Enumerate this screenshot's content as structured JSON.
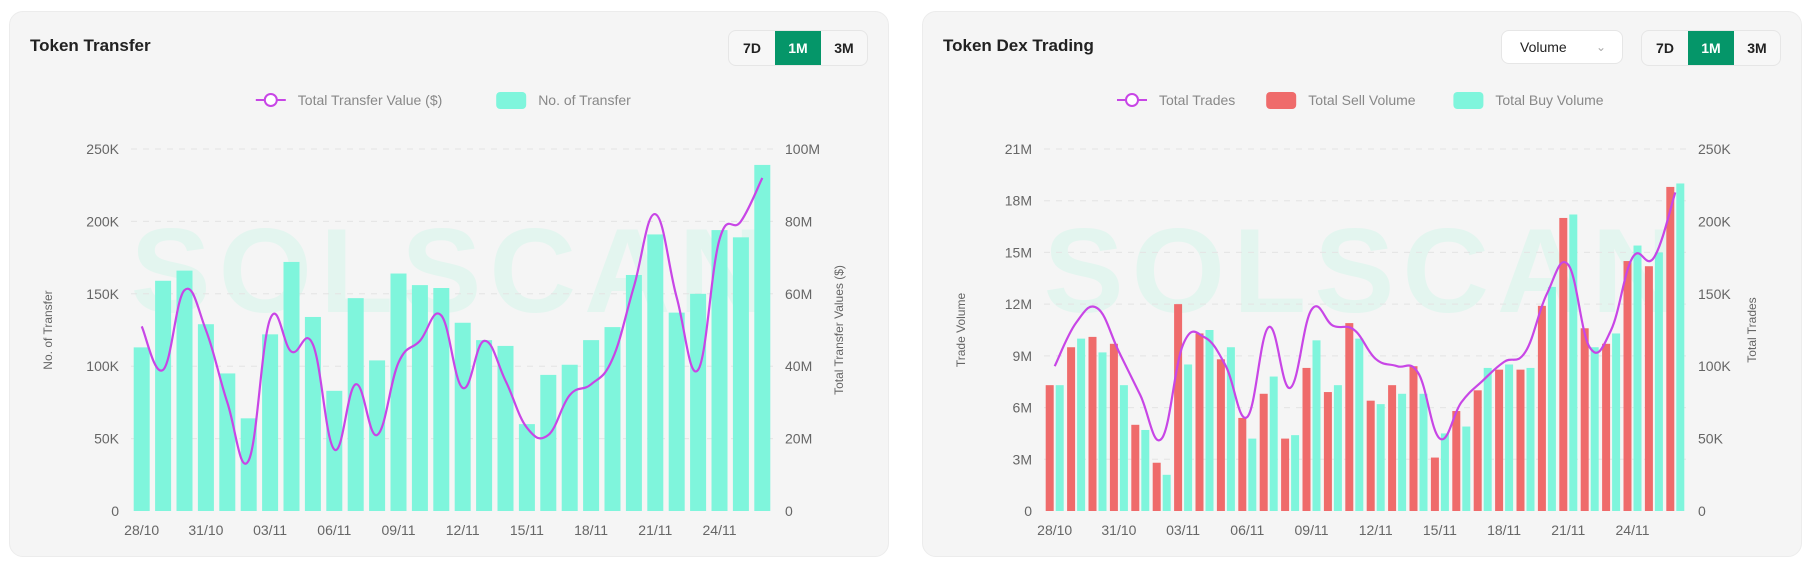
{
  "charts_ui": [
    {
      "title": "Token Transfer",
      "buttons": [
        "7D",
        "1M",
        "3M"
      ],
      "active": "1M"
    },
    {
      "title": "Token Dex Trading",
      "dropdown": "Volume",
      "buttons": [
        "7D",
        "1M",
        "3M"
      ],
      "active": "1M"
    }
  ],
  "watermark": "SOLSCAN",
  "colors": {
    "line": "#c846e6",
    "buy": "#7ff5dc",
    "sell": "#ef6b6b",
    "accent": "#059669"
  },
  "chart_data": [
    {
      "type": "bar+line",
      "legend": [
        "Total Transfer Value ($)",
        "No. of Transfer"
      ],
      "legend_position": "top",
      "ylabel": "No. of Transfer",
      "y2label": "Total Transfer Values ($)",
      "yticks": [
        "0",
        "50K",
        "100K",
        "150K",
        "200K",
        "250K"
      ],
      "ylim": [
        0,
        250000
      ],
      "y2ticks": [
        "0",
        "20M",
        "40M",
        "60M",
        "80M",
        "100M"
      ],
      "y2lim": [
        0,
        100000000
      ],
      "xticks": [
        "28/10",
        "31/10",
        "03/11",
        "06/11",
        "09/11",
        "12/11",
        "15/11",
        "18/11",
        "21/11",
        "24/11"
      ],
      "categories": [
        "28/10",
        "29/10",
        "30/10",
        "31/10",
        "01/11",
        "02/11",
        "03/11",
        "04/11",
        "05/11",
        "06/11",
        "07/11",
        "08/11",
        "09/11",
        "10/11",
        "11/11",
        "12/11",
        "13/11",
        "14/11",
        "15/11",
        "16/11",
        "17/11",
        "18/11",
        "19/11",
        "20/11",
        "21/11",
        "22/11",
        "23/11",
        "24/11",
        "25/11",
        "26/11"
      ],
      "series": [
        {
          "name": "No. of Transfer",
          "type": "bar",
          "axis": "left",
          "values": [
            113000,
            159000,
            166000,
            129000,
            95000,
            64000,
            122000,
            172000,
            134000,
            83000,
            147000,
            104000,
            164000,
            156000,
            154000,
            130000,
            118000,
            114000,
            60000,
            94000,
            101000,
            118000,
            127000,
            163000,
            191000,
            137000,
            150000,
            194000,
            189000,
            239000
          ]
        },
        {
          "name": "Total Transfer Value ($)",
          "type": "line",
          "axis": "right",
          "values": [
            51000000,
            39000000,
            61000000,
            50000000,
            30000000,
            14000000,
            53000000,
            44000000,
            46000000,
            17000000,
            35000000,
            21000000,
            41000000,
            47000000,
            54000000,
            34000000,
            47000000,
            36000000,
            23000000,
            21000000,
            32000000,
            35000000,
            42000000,
            62000000,
            82000000,
            59000000,
            39000000,
            75000000,
            80000000,
            92000000
          ]
        }
      ],
      "grid": true
    },
    {
      "type": "bar+line",
      "legend": [
        "Total Trades",
        "Total Sell Volume",
        "Total Buy Volume"
      ],
      "legend_position": "top",
      "ylabel": "Trade Volume",
      "y2label": "Total Trades",
      "yticks": [
        "0",
        "3M",
        "6M",
        "9M",
        "12M",
        "15M",
        "18M",
        "21M"
      ],
      "ylim": [
        0,
        21000000
      ],
      "y2ticks": [
        "0",
        "50K",
        "100K",
        "150K",
        "200K",
        "250K"
      ],
      "y2lim": [
        0,
        250000
      ],
      "xticks": [
        "28/10",
        "31/10",
        "03/11",
        "06/11",
        "09/11",
        "12/11",
        "15/11",
        "18/11",
        "21/11",
        "24/11"
      ],
      "categories": [
        "28/10",
        "29/10",
        "30/10",
        "31/10",
        "01/11",
        "02/11",
        "03/11",
        "04/11",
        "05/11",
        "06/11",
        "07/11",
        "08/11",
        "09/11",
        "10/11",
        "11/11",
        "12/11",
        "13/11",
        "14/11",
        "15/11",
        "16/11",
        "17/11",
        "18/11",
        "19/11",
        "20/11",
        "21/11",
        "22/11",
        "23/11",
        "24/11",
        "25/11",
        "26/11"
      ],
      "series": [
        {
          "name": "Total Sell Volume",
          "type": "bar",
          "axis": "left",
          "values": [
            7300000,
            9500000,
            10100000,
            9700000,
            5000000,
            2800000,
            12000000,
            10300000,
            8800000,
            5400000,
            6800000,
            4200000,
            8300000,
            6900000,
            10900000,
            6400000,
            7300000,
            8400000,
            3100000,
            5800000,
            7000000,
            8200000,
            8200000,
            11900000,
            17000000,
            10600000,
            9700000,
            14500000,
            14200000,
            18800000
          ]
        },
        {
          "name": "Total Buy Volume",
          "type": "bar",
          "axis": "left",
          "values": [
            7300000,
            10000000,
            9200000,
            7300000,
            4700000,
            2100000,
            8500000,
            10500000,
            9500000,
            4200000,
            7800000,
            4400000,
            9900000,
            7300000,
            10000000,
            6200000,
            6800000,
            6800000,
            4500000,
            4900000,
            8300000,
            8500000,
            8300000,
            13000000,
            17200000,
            9500000,
            10300000,
            15400000,
            15000000,
            19000000
          ]
        },
        {
          "name": "Total Trades",
          "type": "line",
          "axis": "right",
          "values": [
            100000,
            130000,
            140000,
            110000,
            80000,
            50000,
            115000,
            120000,
            100000,
            65000,
            127000,
            85000,
            139000,
            128000,
            125000,
            105000,
            100000,
            95000,
            50000,
            75000,
            90000,
            103000,
            110000,
            150000,
            170000,
            113000,
            125000,
            175000,
            175000,
            220000
          ]
        }
      ],
      "grid": true
    }
  ]
}
